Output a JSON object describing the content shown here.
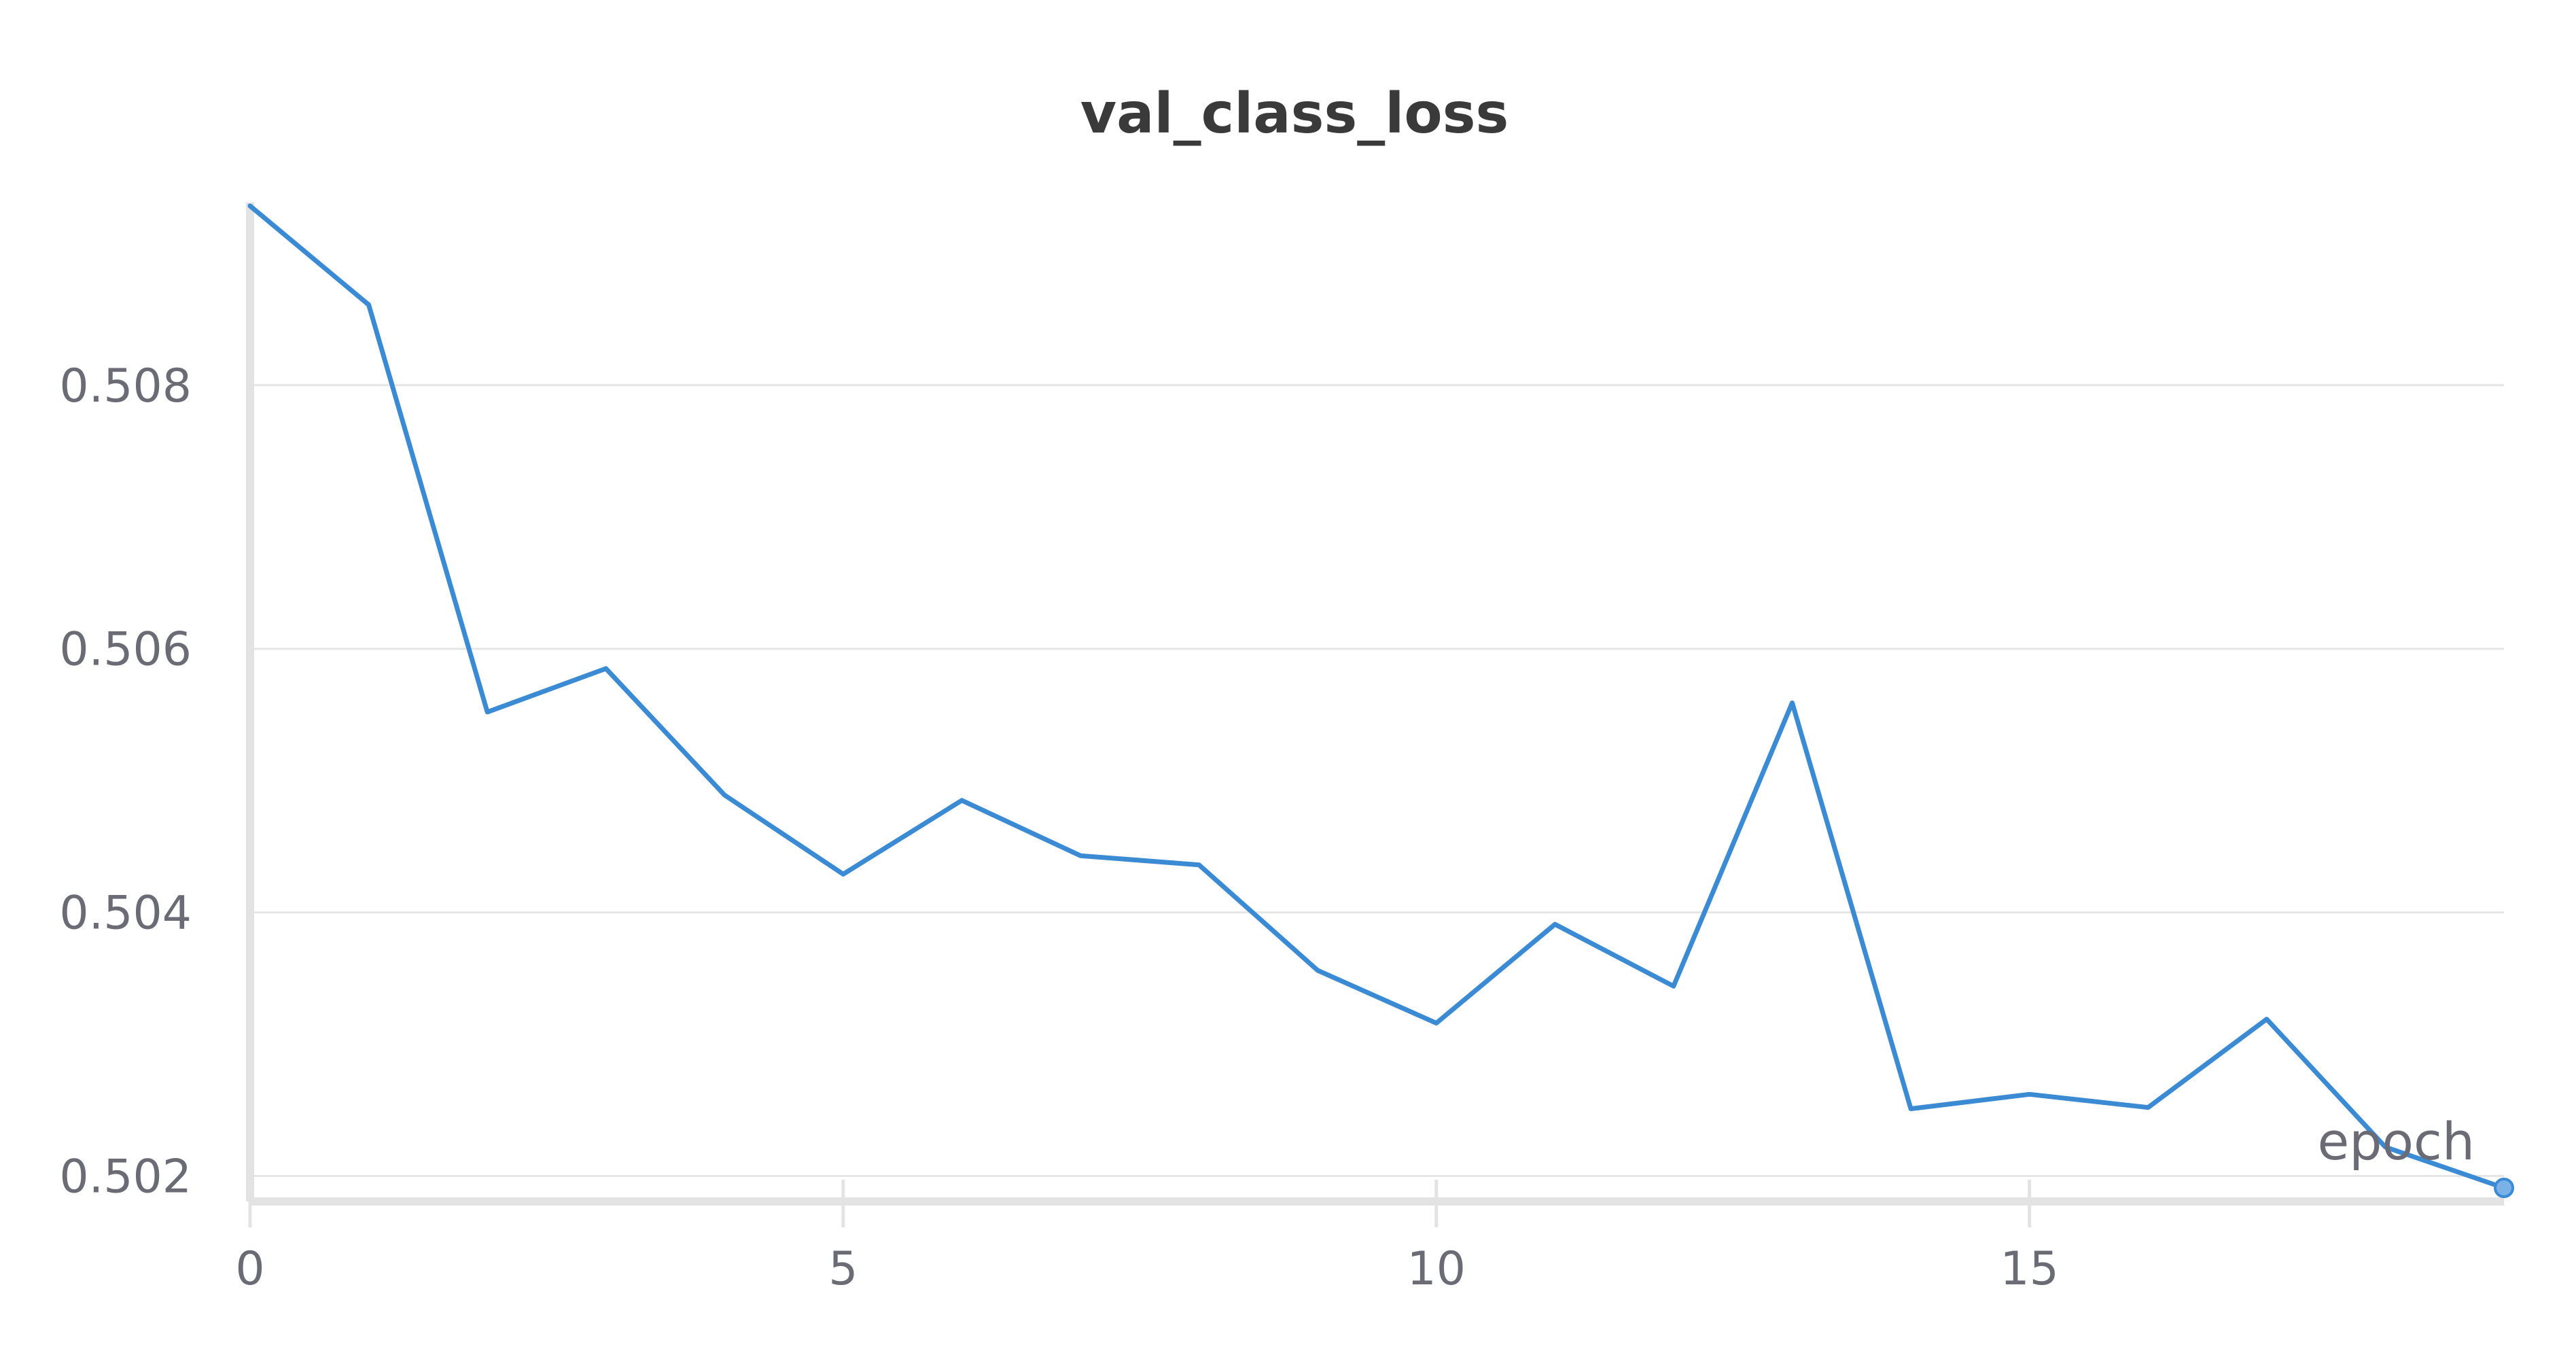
{
  "chart_data": {
    "type": "line",
    "title": "val_class_loss",
    "xlabel": "epoch",
    "ylabel": "",
    "xlim": [
      0,
      19
    ],
    "ylim": [
      0.50191,
      0.50936
    ],
    "x_ticks": [
      "0",
      "5",
      "10",
      "15"
    ],
    "y_ticks": [
      "0.502",
      "0.504",
      "0.506",
      "0.508"
    ],
    "grid": true,
    "legend": "none",
    "series": [
      {
        "color": "#3a8ad4",
        "x": [
          0,
          1,
          2,
          3,
          4,
          5,
          6,
          7,
          8,
          9,
          10,
          11,
          12,
          13,
          14,
          15,
          16,
          17,
          18,
          19
        ],
        "y": [
          0.50936,
          0.50861,
          0.50552,
          0.50585,
          0.50489,
          0.50429,
          0.50485,
          0.50443,
          0.50436,
          0.50356,
          0.50316,
          0.50391,
          0.50344,
          0.50559,
          0.50251,
          0.50262,
          0.50252,
          0.50319,
          0.50222,
          0.50191
        ]
      }
    ]
  }
}
